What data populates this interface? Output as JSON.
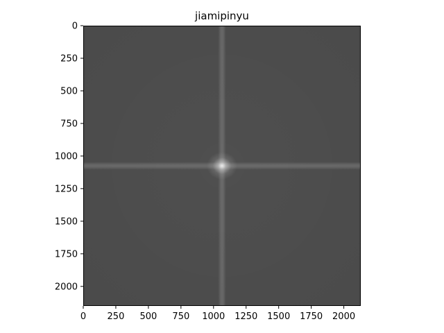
{
  "chart_data": {
    "type": "heatmap",
    "title": "jiamipinyu",
    "xlabel": "",
    "ylabel": "",
    "colormap": "gray",
    "background_color": "#4f4f4f",
    "peak_color": "#f0f0f0",
    "xlim": [
      0,
      2130
    ],
    "ylim": [
      2150,
      0
    ],
    "x_ticks": [
      0,
      250,
      500,
      750,
      1000,
      1250,
      1500,
      1750,
      2000
    ],
    "y_ticks": [
      0,
      250,
      500,
      750,
      1000,
      1250,
      1500,
      1750,
      2000
    ],
    "features": [
      {
        "kind": "vertical-band",
        "x": 1065,
        "width": 60
      },
      {
        "kind": "horizontal-band",
        "y": 1075,
        "width": 60
      },
      {
        "kind": "bright-center",
        "x": 1065,
        "y": 1075
      }
    ],
    "grid": false
  }
}
